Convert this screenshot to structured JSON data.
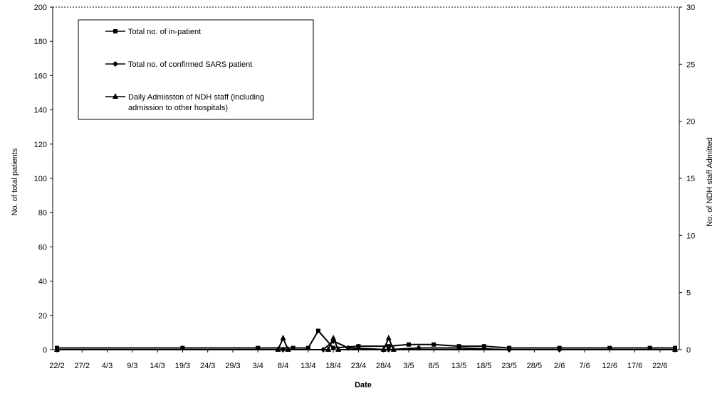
{
  "chart_data": {
    "type": "line",
    "xlabel": "Date",
    "ylabel_left": "No. of total patients",
    "ylabel_right": "No. of NDH staff Admitted",
    "ylim_left": [
      0,
      200
    ],
    "ylim_right": [
      0,
      30
    ],
    "yticks_left": [
      "0",
      "20",
      "40",
      "60",
      "80",
      "100",
      "120",
      "140",
      "160",
      "180",
      "200"
    ],
    "yticks_right": [
      "0",
      "5",
      "10",
      "15",
      "20",
      "25",
      "30"
    ],
    "categories": [
      "22/2",
      "27/2",
      "4/3",
      "9/3",
      "14/3",
      "19/3",
      "24/3",
      "29/3",
      "3/4",
      "8/4",
      "13/4",
      "18/4",
      "23/4",
      "28/4",
      "3/5",
      "8/5",
      "13/5",
      "18/5",
      "23/5",
      "28/5",
      "2/6",
      "7/6",
      "12/6",
      "17/6",
      "22/6"
    ],
    "legend": {
      "position": "top-left",
      "entries": [
        "Total no. of in-patient",
        "Total no. of confirmed SARS patient",
        "Daily Admisston of NDH staff (including admission to other hospitals)"
      ],
      "entry_lines": [
        [
          "Total no. of in-patient"
        ],
        [
          "Total no. of confirmed SARS patient"
        ],
        [
          "Daily Admisston of NDH staff (including",
          "admission to other hospitals)"
        ]
      ]
    },
    "series": [
      {
        "name": "Total no. of in-patient",
        "axis": "left",
        "marker": "square",
        "x": [
          0,
          25,
          40,
          47,
          50,
          52,
          55,
          60,
          66,
          70,
          75,
          80,
          85,
          90,
          100,
          110,
          118,
          123
        ],
        "values": [
          1,
          1,
          1,
          1,
          1,
          11,
          1,
          2,
          2,
          3,
          3,
          2,
          2,
          1,
          1,
          1,
          1,
          1
        ]
      },
      {
        "name": "Total no. of confirmed SARS patient",
        "axis": "left",
        "marker": "diamond",
        "x": [
          0,
          45,
          53,
          55,
          58,
          66,
          72,
          80,
          90,
          100,
          123
        ],
        "values": [
          0,
          0,
          0,
          5,
          1,
          0,
          1,
          1,
          0,
          0,
          0
        ]
      },
      {
        "name": "Daily Admisston of NDH staff (including admission to other hospitals)",
        "axis": "right",
        "marker": "triangle",
        "x": [
          0,
          44,
          45,
          46,
          54,
          55,
          56,
          65,
          66,
          67,
          123
        ],
        "values": [
          0,
          0,
          1,
          0,
          0,
          1,
          0,
          0,
          1,
          0,
          0
        ]
      }
    ],
    "colors": {
      "line": "#000000",
      "background": "#ffffff"
    },
    "grid": false
  }
}
